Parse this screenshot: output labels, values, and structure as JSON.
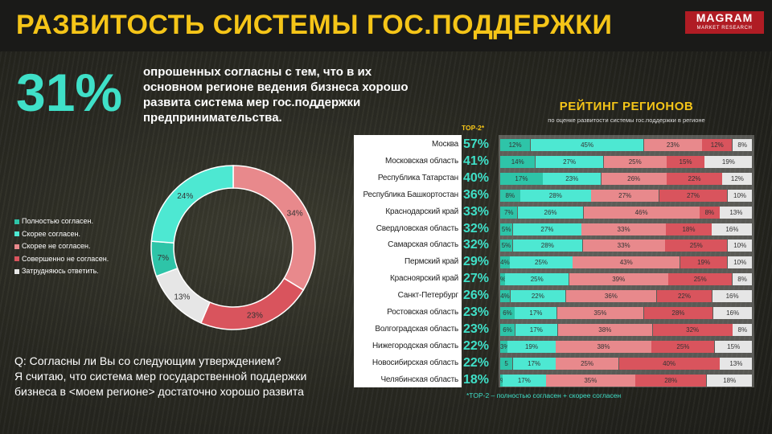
{
  "header": {
    "title": "РАЗВИТОСТЬ СИСТЕМЫ ГОС.ПОДДЕРЖКИ",
    "logo_main": "MAGRAM",
    "logo_sub": "MARKET RESEARCH"
  },
  "summary": {
    "big_percent": "31%",
    "statement": "опрошенных согласны с тем, что в их основном регионе ведения бизнеса хорошо развита система мер гос.поддержки предпринимательства."
  },
  "question": {
    "q": "Q: Согласны ли Вы со следующим утверждением?",
    "body": "Я считаю, что система мер государственной поддержки бизнеса в <моем регионе> достаточно хорошо развита"
  },
  "rating": {
    "title": "РЕЙТИНГ РЕГИОНОВ",
    "subtitle": "по оценке развитости системы гос.поддержки в регионе",
    "top2_header": "TOP-2*",
    "footnote": "*TOP-2 – полностью согласен + скорее согласен"
  },
  "colors": {
    "full_agree": "#2ec4a8",
    "rather_agree": "#4de8d2",
    "rather_disagree": "#e8898c",
    "full_disagree": "#d9545d",
    "hard_to_say": "#e6e6e6",
    "accent_yellow": "#f5c518",
    "accent_teal": "#3fe0c8"
  },
  "chart_data": [
    {
      "type": "pie",
      "categories": [
        "Полностью согласен.",
        "Скорее согласен.",
        "Скорее не согласен.",
        "Совершенно не согласен.",
        "Затрудняюсь ответить."
      ],
      "values": [
        7,
        24,
        34,
        23,
        13
      ],
      "labels": [
        "7%",
        "24%",
        "34%",
        "23%",
        "13%"
      ],
      "legend_position": "left"
    },
    {
      "type": "bar",
      "stacked": true,
      "orientation": "horizontal",
      "categories": [
        "Москва",
        "Московская область",
        "Республика Татарстан",
        "Республика Башкортостан",
        "Краснодарский край",
        "Свердловская область",
        "Самарская область",
        "Пермский край",
        "Красноярский край",
        "Санкт-Петербург",
        "Ростовская область",
        "Волгоградская область",
        "Нижегородская область",
        "Новосибирская область",
        "Челябинская область"
      ],
      "top2": [
        "57%",
        "41%",
        "40%",
        "36%",
        "33%",
        "32%",
        "32%",
        "29%",
        "27%",
        "26%",
        "23%",
        "23%",
        "22%",
        "22%",
        "18%"
      ],
      "series": [
        {
          "values": [
            12,
            14,
            17,
            8,
            7,
            5,
            5,
            4,
            2,
            4,
            6,
            6,
            3,
            5,
            1
          ],
          "labels": [
            "12%",
            "14%",
            "17%",
            "8%",
            "7%",
            "5%",
            "5%",
            "4%",
            "%",
            "4%",
            "6%",
            "6%",
            "3%",
            "5",
            "%"
          ]
        },
        {
          "values": [
            45,
            27,
            23,
            28,
            26,
            27,
            28,
            25,
            25,
            22,
            17,
            17,
            19,
            17,
            17
          ],
          "labels": [
            "45%",
            "27%",
            "23%",
            "28%",
            "26%",
            "27%",
            "28%",
            "25%",
            "25%",
            "22%",
            "17%",
            "17%",
            "19%",
            "17%",
            "17%"
          ]
        },
        {
          "values": [
            23,
            25,
            26,
            27,
            46,
            33,
            33,
            43,
            39,
            36,
            35,
            38,
            38,
            25,
            35
          ],
          "labels": [
            "23%",
            "25%",
            "26%",
            "27%",
            "46%",
            "33%",
            "33%",
            "43%",
            "39%",
            "36%",
            "35%",
            "38%",
            "38%",
            "25%",
            "35%"
          ]
        },
        {
          "values": [
            12,
            15,
            22,
            27,
            8,
            18,
            25,
            19,
            25,
            22,
            28,
            32,
            25,
            40,
            28
          ],
          "labels": [
            "12%",
            "15%",
            "22%",
            "27%",
            "8%",
            "18%",
            "25%",
            "19%",
            "25%",
            "22%",
            "28%",
            "32%",
            "25%",
            "40%",
            "28%"
          ]
        },
        {
          "values": [
            8,
            19,
            12,
            10,
            13,
            16,
            10,
            10,
            8,
            16,
            16,
            8,
            15,
            13,
            18
          ],
          "labels": [
            "8%",
            "19%",
            "12%",
            "10%",
            "13%",
            "16%",
            "10%",
            "10%",
            "8%",
            "16%",
            "16%",
            "8%",
            "15%",
            "13%",
            "18%"
          ]
        }
      ]
    }
  ]
}
